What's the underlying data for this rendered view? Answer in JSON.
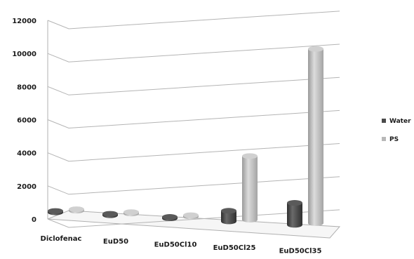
{
  "chart_data": {
    "type": "bar",
    "categories": [
      "Diclofenac",
      "EuD50",
      "EuD50Cl10",
      "EuD50Cl25",
      "EuD50Cl35"
    ],
    "series": [
      {
        "name": "Water",
        "values": [
          50,
          20,
          15,
          700,
          1450
        ],
        "color": "#4a4a4a"
      },
      {
        "name": "PS",
        "values": [
          20,
          10,
          10,
          4200,
          11500
        ],
        "color": "#b8b8b8"
      }
    ],
    "yticks": [
      "0",
      "2000",
      "4000",
      "6000",
      "8000",
      "10000",
      "12000"
    ],
    "ylim": [
      0,
      12000
    ],
    "grid": true,
    "legend_position": "right",
    "style": "3d-cylinder"
  }
}
